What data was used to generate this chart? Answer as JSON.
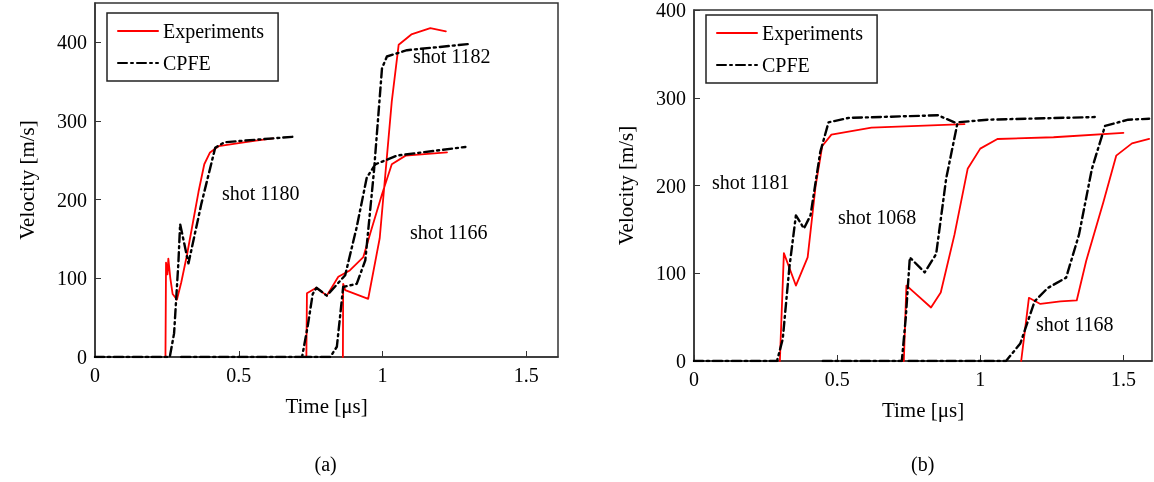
{
  "chart_data": [
    {
      "type": "line",
      "xlabel": "Time [μs]",
      "ylabel": "Velocity [m/s]",
      "xlim": [
        0,
        1.61
      ],
      "xticks": [
        0,
        0.5,
        1,
        1.5
      ],
      "ylim": [
        0,
        450
      ],
      "yticks": [
        0,
        100,
        200,
        300,
        400
      ],
      "grid": false,
      "legend": "top left",
      "marker": "none",
      "series": [
        {
          "name": "Experiments",
          "color": "#ff0000",
          "line_style": "solid",
          "x": [
            0.245,
            0.247,
            0.252,
            0.255,
            0.262,
            0.27,
            0.285,
            0.3,
            0.32,
            0.34,
            0.36,
            0.38,
            0.4,
            0.43,
            0.5,
            0.62,
            null,
            0.735,
            0.737,
            0.77,
            0.806,
            0.846,
            0.886,
            0.933,
            0.957,
            0.998,
            1.032,
            1.08,
            1.224,
            null,
            0.862,
            0.863,
            0.87,
            0.95,
            0.99,
            1.032,
            1.056,
            1.1,
            1.166,
            1.22
          ],
          "values": [
            0,
            120,
            105,
            125,
            100,
            80,
            73,
            95,
            130,
            170,
            210,
            245,
            260,
            268,
            272,
            278,
            null,
            0,
            81,
            88,
            78,
            102,
            110,
            127,
            157,
            207,
            245,
            256,
            260,
            null,
            0,
            93,
            85,
            74,
            151,
            325,
            397,
            410,
            418,
            414
          ]
        },
        {
          "name": "CPFE",
          "color": "#000000",
          "line_style": "dashed",
          "x": [
            0,
            0.26,
            0.275,
            0.29,
            0.296,
            0.325,
            0.37,
            0.418,
            0.45,
            0.69,
            null,
            0.3,
            0.72,
            0.74,
            0.757,
            0.77,
            0.806,
            0.87,
            0.91,
            0.945,
            0.975,
            1.05,
            1.288,
            null,
            0.72,
            0.818,
            0.841,
            0.863,
            0.91,
            0.94,
            0.97,
            0.998,
            1.015,
            1.085,
            1.305
          ],
          "values": [
            0,
            0,
            30,
            120,
            169,
            119,
            195,
            266,
            273,
            280,
            null,
            0,
            0,
            40,
            80,
            88,
            78,
            104,
            165,
            228,
            245,
            256,
            267,
            null,
            0,
            0,
            13,
            89,
            93,
            123,
            236,
            367,
            382,
            390,
            398
          ]
        }
      ],
      "annotations": [
        "shot 1180",
        "shot 1182",
        "shot 1166",
        "(a)"
      ]
    },
    {
      "type": "line",
      "xlabel": "Time [μs]",
      "ylabel": "Velocity [m/s]",
      "xlim": [
        0,
        1.6
      ],
      "xticks": [
        0,
        0.5,
        1,
        1.5
      ],
      "ylim": [
        0,
        400
      ],
      "yticks": [
        0,
        100,
        200,
        300,
        400
      ],
      "grid": false,
      "legend": "top left",
      "marker": "none",
      "series": [
        {
          "name": "Experiments",
          "color": "#ff0000",
          "line_style": "solid",
          "x": [
            0.3,
            0.314,
            0.356,
            0.397,
            0.425,
            0.448,
            0.48,
            0.62,
            0.945,
            null,
            0.733,
            0.742,
            0.77,
            0.828,
            0.862,
            0.91,
            0.956,
            1.0,
            1.06,
            1.256,
            1.5,
            null,
            1.143,
            1.17,
            1.21,
            1.28,
            1.337,
            1.37,
            1.43,
            1.475,
            1.53,
            1.59
          ],
          "values": [
            0,
            123,
            86,
            118,
            200,
            245,
            258,
            266,
            270,
            null,
            0,
            86,
            78,
            61,
            78,
            144,
            219,
            242,
            253,
            255,
            260,
            null,
            0,
            72,
            65,
            68,
            69,
            114,
            181,
            234,
            248,
            253
          ]
        },
        {
          "name": "CPFE",
          "color": "#000000",
          "line_style": "dashed",
          "x": [
            0,
            0.29,
            0.31,
            0.333,
            0.356,
            0.384,
            0.407,
            0.441,
            0.47,
            0.54,
            0.852,
            0.91,
            null,
            0.45,
            0.726,
            0.74,
            0.754,
            0.806,
            0.846,
            0.881,
            0.921,
            1.025,
            1.4,
            null,
            0.75,
            1.09,
            1.14,
            1.19,
            1.235,
            1.3,
            1.345,
            1.39,
            1.436,
            1.517,
            1.59
          ],
          "values": [
            0,
            0,
            25,
            106,
            166,
            151,
            166,
            238,
            272,
            277,
            280,
            272,
            null,
            0,
            0,
            50,
            118,
            101,
            122,
            208,
            272,
            275,
            278,
            null,
            0,
            0,
            20,
            68,
            83,
            95,
            144,
            219,
            268,
            275,
            276
          ]
        }
      ],
      "annotations": [
        "shot 1181",
        "shot 1068",
        "shot 1168",
        "(b)"
      ]
    }
  ]
}
